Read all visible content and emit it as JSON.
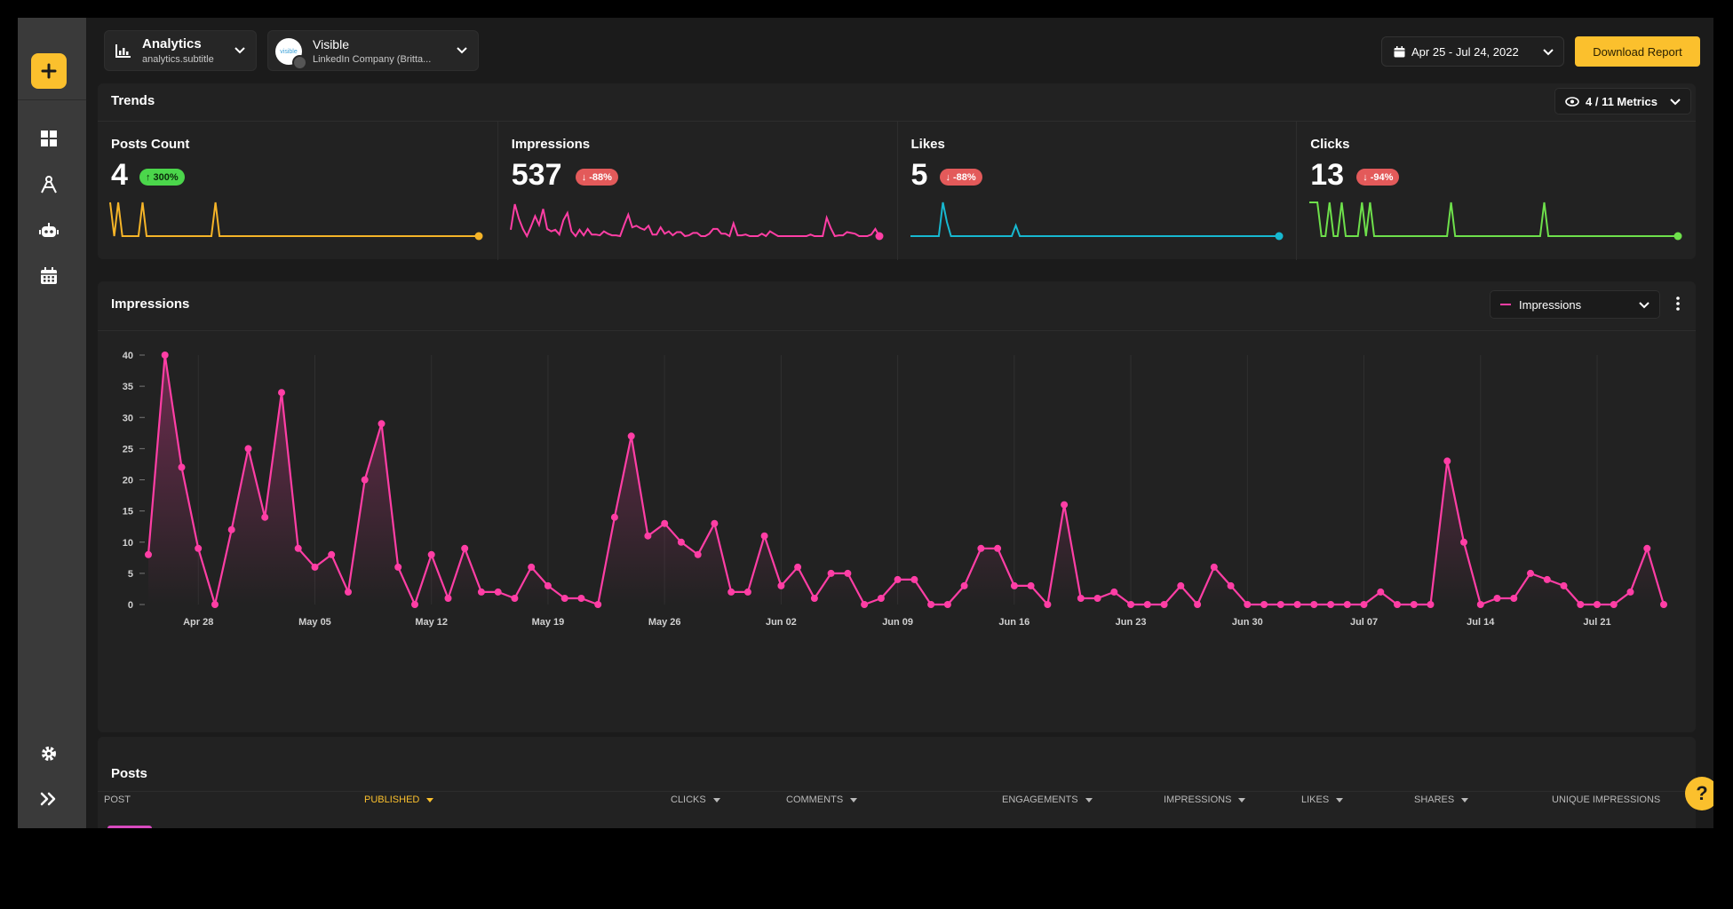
{
  "header": {
    "analytics_title": "Analytics",
    "analytics_subtitle": "analytics.subtitle",
    "account_name": "Visible",
    "account_sub": "LinkedIn Company (Britta...",
    "account_logo_text": "visible",
    "date_range": "Apr 25 - Jul 24, 2022",
    "download_label": "Download Report"
  },
  "trends": {
    "title": "Trends",
    "metrics_selector": "4 / 11 Metrics",
    "cards": [
      {
        "title": "Posts Count",
        "value": "4",
        "change": "300%",
        "direction": "up",
        "color": "#f5b428"
      },
      {
        "title": "Impressions",
        "value": "537",
        "change": "-88%",
        "direction": "down",
        "color": "#ff3ea5"
      },
      {
        "title": "Likes",
        "value": "5",
        "change": "-88%",
        "direction": "down",
        "color": "#17b8d0"
      },
      {
        "title": "Clicks",
        "value": "13",
        "change": "-94%",
        "direction": "down",
        "color": "#6ee04b"
      }
    ]
  },
  "impressions_panel": {
    "title": "Impressions",
    "selector_label": "Impressions",
    "accent": "#ff3ea5"
  },
  "chart_data": {
    "type": "area",
    "title": "Impressions",
    "ylim": [
      0,
      40
    ],
    "yticks": [
      0,
      5,
      10,
      15,
      20,
      25,
      30,
      35,
      40
    ],
    "xtick_labels": [
      "Apr 28",
      "May 05",
      "May 12",
      "May 19",
      "May 26",
      "Jun 02",
      "Jun 09",
      "Jun 16",
      "Jun 23",
      "Jun 30",
      "Jul 07",
      "Jul 14",
      "Jul 21"
    ],
    "start_date": "2022-04-25",
    "series": [
      {
        "name": "Impressions",
        "color": "#ff3ea5",
        "values": [
          8,
          40,
          22,
          9,
          0,
          12,
          25,
          14,
          34,
          9,
          6,
          8,
          2,
          20,
          29,
          6,
          0,
          8,
          1,
          9,
          2,
          2,
          1,
          6,
          3,
          1,
          1,
          0,
          14,
          27,
          11,
          13,
          10,
          8,
          13,
          2,
          2,
          11,
          3,
          6,
          1,
          5,
          5,
          0,
          1,
          4,
          4,
          0,
          0,
          3,
          9,
          9,
          3,
          3,
          0,
          16,
          1,
          1,
          2,
          0,
          0,
          0,
          3,
          0,
          6,
          3,
          0,
          0,
          0,
          0,
          0,
          0,
          0,
          0,
          2,
          0,
          0,
          0,
          23,
          10,
          0,
          1,
          1,
          5,
          4,
          3,
          0,
          0,
          0,
          2,
          9,
          0
        ]
      }
    ]
  },
  "posts": {
    "title": "Posts",
    "columns": [
      "Post",
      "Published",
      "Clicks",
      "Comments",
      "Engagements",
      "Impressions",
      "Likes",
      "Shares",
      "Unique Impressions"
    ]
  },
  "colors": {
    "accent_yellow": "#fbc02d",
    "pink": "#ff3ea5"
  }
}
